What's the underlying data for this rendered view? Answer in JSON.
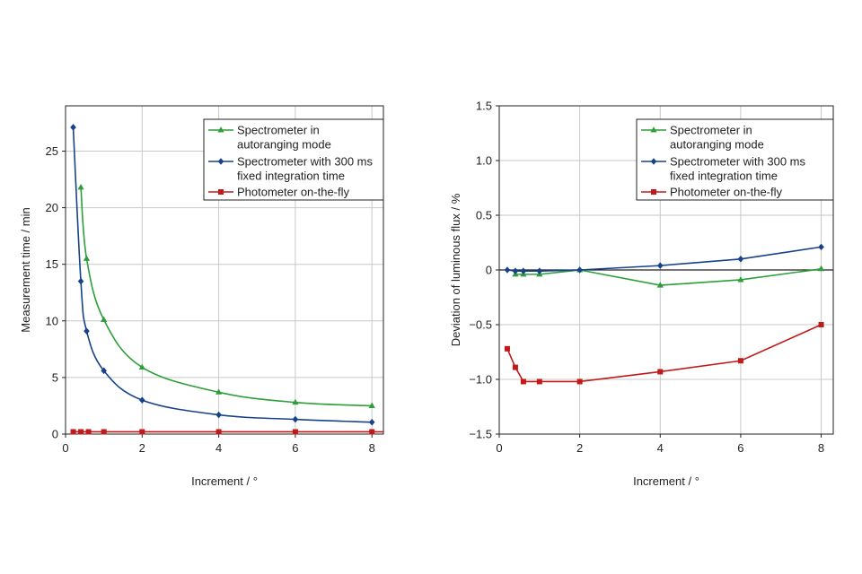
{
  "colors": {
    "green": "#2e9e3a",
    "blue": "#17428a",
    "red": "#c11a1a",
    "grid": "#c8c8c8",
    "axis": "#222222"
  },
  "chart_data": [
    {
      "type": "line",
      "title": "",
      "xlabel": "Increment / °",
      "ylabel": "Measurement time / min",
      "xlim": [
        0,
        8.3
      ],
      "ylim": [
        0,
        29
      ],
      "xticks": [
        0,
        2,
        4,
        6,
        8
      ],
      "yticks": [
        0,
        5,
        10,
        15,
        20,
        25
      ],
      "grid": true,
      "legend_position": "top-right",
      "series": [
        {
          "name": "Spectrometer in autoranging mode",
          "legend_lines": [
            "Spectrometer in",
            "autoranging mode"
          ],
          "color_key": "green",
          "marker": "triangle",
          "smooth": true,
          "x": [
            0.4,
            0.55,
            1,
            2,
            4,
            6,
            8
          ],
          "y": [
            21.8,
            15.5,
            10.1,
            5.9,
            3.7,
            2.8,
            2.5
          ]
        },
        {
          "name": "Spectrometer with 300 ms fixed integration time",
          "legend_lines": [
            "Spectrometer with 300 ms",
            "fixed integration time"
          ],
          "color_key": "blue",
          "marker": "diamond",
          "smooth": true,
          "x": [
            0.2,
            0.4,
            0.55,
            1,
            2,
            4,
            6,
            8
          ],
          "y": [
            27.1,
            13.5,
            9.1,
            5.6,
            3.0,
            1.7,
            1.3,
            1.05
          ]
        },
        {
          "name": "Photometer on-the-fly",
          "legend_lines": [
            "Photometer on-the-fly"
          ],
          "color_key": "red",
          "marker": "square",
          "smooth": false,
          "x": [
            0.2,
            0.4,
            0.6,
            1,
            2,
            4,
            6,
            8
          ],
          "y": [
            0.2,
            0.2,
            0.2,
            0.2,
            0.2,
            0.2,
            0.2,
            0.2
          ]
        }
      ]
    },
    {
      "type": "line",
      "title": "",
      "xlabel": "Increment / °",
      "ylabel": "Deviation of luminous flux / %",
      "xlim": [
        0,
        8.3
      ],
      "ylim": [
        -1.5,
        1.5
      ],
      "xticks": [
        0,
        2,
        4,
        6,
        8
      ],
      "yticks": [
        -1.5,
        -1.0,
        -0.5,
        0,
        0.5,
        1.0,
        1.5
      ],
      "ytick_labels": [
        "−1.5",
        "−1.0",
        "−0.5",
        "0",
        "0.5",
        "1.0",
        "1.5"
      ],
      "grid": true,
      "zero_line": true,
      "legend_position": "top-right",
      "series": [
        {
          "name": "Spectrometer in autoranging mode",
          "legend_lines": [
            "Spectrometer in",
            "autoranging mode"
          ],
          "color_key": "green",
          "marker": "triangle",
          "smooth": false,
          "x": [
            0.4,
            0.6,
            1,
            2,
            4,
            6,
            8
          ],
          "y": [
            -0.04,
            -0.04,
            -0.04,
            0.0,
            -0.14,
            -0.09,
            0.01
          ]
        },
        {
          "name": "Spectrometer with 300 ms fixed integration time",
          "legend_lines": [
            "Spectrometer with 300 ms",
            "fixed integration time"
          ],
          "color_key": "blue",
          "marker": "diamond",
          "smooth": false,
          "x": [
            0.2,
            0.4,
            0.6,
            1,
            2,
            4,
            6,
            8
          ],
          "y": [
            0.0,
            -0.01,
            -0.01,
            -0.01,
            0.0,
            0.04,
            0.1,
            0.21
          ]
        },
        {
          "name": "Photometer on-the-fly",
          "legend_lines": [
            "Photometer on-the-fly"
          ],
          "color_key": "red",
          "marker": "square",
          "smooth": false,
          "x": [
            0.2,
            0.4,
            0.6,
            1,
            2,
            4,
            6,
            8
          ],
          "y": [
            -0.72,
            -0.89,
            -1.02,
            -1.02,
            -1.02,
            -0.93,
            -0.83,
            -0.5
          ]
        }
      ]
    }
  ]
}
